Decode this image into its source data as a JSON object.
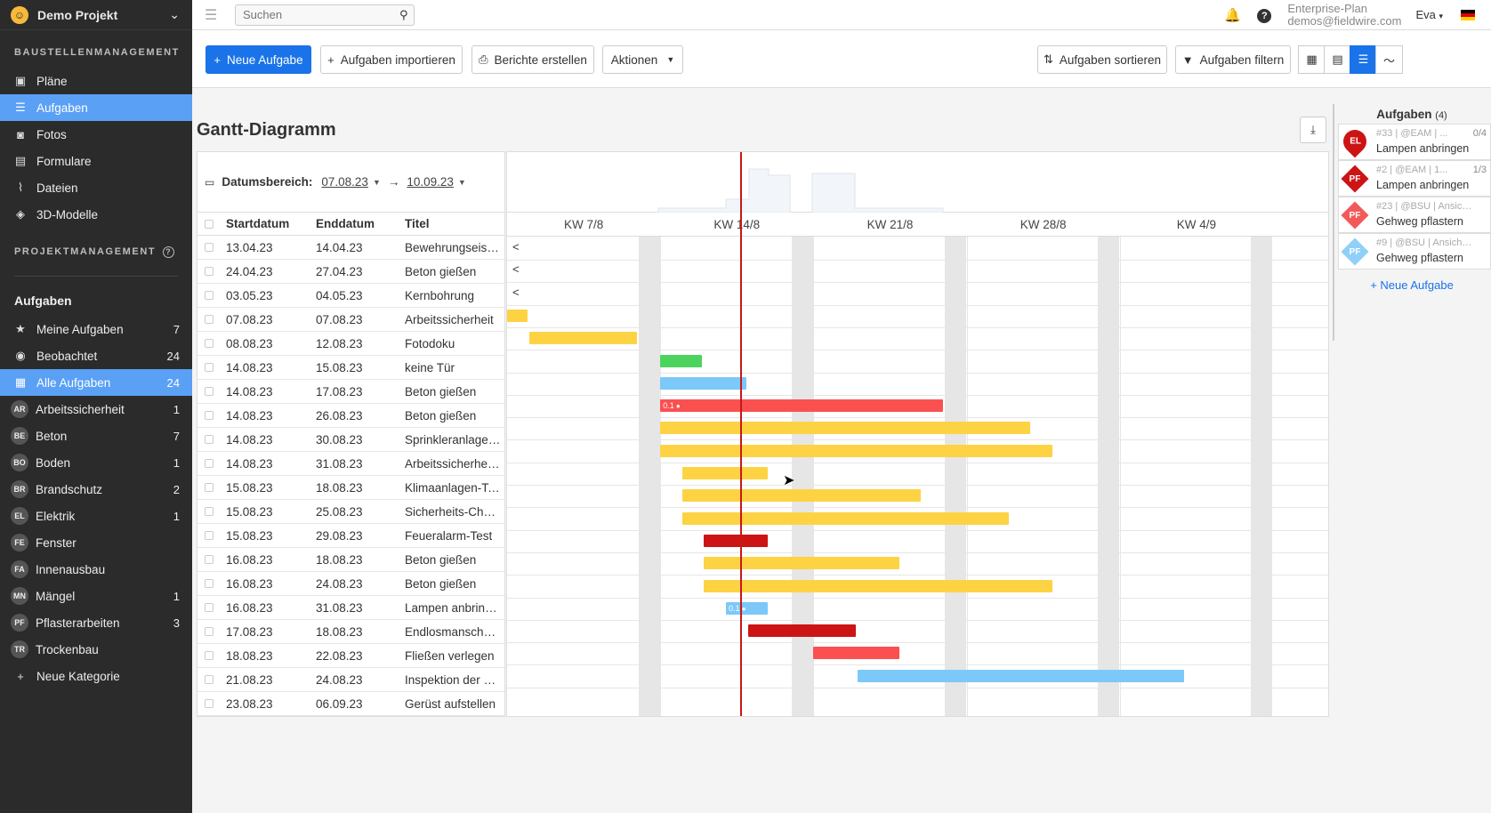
{
  "project": {
    "name": "Demo Projekt"
  },
  "sidebar": {
    "section1": "BAUSTELLENMANAGEMENT",
    "nav": [
      {
        "label": "Pläne",
        "icon": "plans-icon"
      },
      {
        "label": "Aufgaben",
        "icon": "list-icon",
        "active": true
      },
      {
        "label": "Fotos",
        "icon": "camera-icon"
      },
      {
        "label": "Formulare",
        "icon": "clipboard-icon"
      },
      {
        "label": "Dateien",
        "icon": "paperclip-icon"
      },
      {
        "label": "3D-Modelle",
        "icon": "cube-icon"
      }
    ],
    "section2": "PROJEKTMANAGEMENT",
    "tasks_heading": "Aufgaben",
    "task_filters": [
      {
        "label": "Meine Aufgaben",
        "icon": "star-icon",
        "count": "7"
      },
      {
        "label": "Beobachtet",
        "icon": "eye-icon",
        "count": "24"
      },
      {
        "label": "Alle Aufgaben",
        "icon": "grid-icon",
        "count": "24",
        "active": true
      }
    ],
    "categories": [
      {
        "abbr": "AR",
        "label": "Arbeitssicherheit",
        "count": "1"
      },
      {
        "abbr": "BE",
        "label": "Beton",
        "count": "7"
      },
      {
        "abbr": "BO",
        "label": "Boden",
        "count": "1"
      },
      {
        "abbr": "BR",
        "label": "Brandschutz",
        "count": "2"
      },
      {
        "abbr": "EL",
        "label": "Elektrik",
        "count": "1"
      },
      {
        "abbr": "FE",
        "label": "Fenster",
        "count": ""
      },
      {
        "abbr": "FA",
        "label": "Innenausbau",
        "count": ""
      },
      {
        "abbr": "MN",
        "label": "Mängel",
        "count": "1"
      },
      {
        "abbr": "PF",
        "label": "Pflasterarbeiten",
        "count": "3"
      },
      {
        "abbr": "TR",
        "label": "Trockenbau",
        "count": ""
      }
    ],
    "new_category": "Neue Kategorie"
  },
  "topbar": {
    "search_placeholder": "Suchen",
    "plan": "Enterprise-Plan",
    "email": "demos@fieldwire.com",
    "user": "Eva"
  },
  "toolbar": {
    "new_task": "Neue Aufgabe",
    "import": "Aufgaben importieren",
    "reports": "Berichte erstellen",
    "actions": "Aktionen",
    "sort": "Aufgaben sortieren",
    "filter": "Aufgaben filtern"
  },
  "gantt": {
    "title": "Gantt-Diagramm",
    "date_range_label": "Datumsbereich:",
    "date_from": "07.08.23",
    "date_to": "10.09.23",
    "columns": {
      "start": "Startdatum",
      "end": "Enddatum",
      "title": "Titel"
    },
    "weeks": [
      "KW 7/8",
      "KW 14/8",
      "KW 21/8",
      "KW 28/8",
      "KW 4/9"
    ],
    "rows": [
      {
        "start": "13.04.23",
        "end": "14.04.23",
        "title": "Bewehrungseisen...",
        "before": true
      },
      {
        "start": "24.04.23",
        "end": "27.04.23",
        "title": "Beton gießen",
        "before": true
      },
      {
        "start": "03.05.23",
        "end": "04.05.23",
        "title": "Kernbohrung",
        "before": true
      },
      {
        "start": "07.08.23",
        "end": "07.08.23",
        "title": "Arbeitssicherheit",
        "color": "#fdd344"
      },
      {
        "start": "08.08.23",
        "end": "12.08.23",
        "title": "Fotodoku",
        "color": "#fdd344"
      },
      {
        "start": "14.08.23",
        "end": "15.08.23",
        "title": "keine Tür",
        "color": "#4cd35e"
      },
      {
        "start": "14.08.23",
        "end": "17.08.23",
        "title": "Beton gießen",
        "color": "#7cc8f8"
      },
      {
        "start": "14.08.23",
        "end": "26.08.23",
        "title": "Beton gießen",
        "color": "#fb5050",
        "label": "0.1"
      },
      {
        "start": "14.08.23",
        "end": "30.08.23",
        "title": "Sprinkleranlagen-...",
        "color": "#fdd344"
      },
      {
        "start": "14.08.23",
        "end": "31.08.23",
        "title": "Arbeitssicherheit ...",
        "color": "#fdd344"
      },
      {
        "start": "15.08.23",
        "end": "18.08.23",
        "title": "Klimaanlagen-Tes...",
        "color": "#fdd344"
      },
      {
        "start": "15.08.23",
        "end": "25.08.23",
        "title": "Sicherheits-Chec...",
        "color": "#fdd344"
      },
      {
        "start": "15.08.23",
        "end": "29.08.23",
        "title": "Feueralarm-Test",
        "color": "#fdd344"
      },
      {
        "start": "16.08.23",
        "end": "18.08.23",
        "title": "Beton gießen",
        "color": "#cc1414"
      },
      {
        "start": "16.08.23",
        "end": "24.08.23",
        "title": "Beton gießen",
        "color": "#fdd344"
      },
      {
        "start": "16.08.23",
        "end": "31.08.23",
        "title": "Lampen anbringe...",
        "color": "#fdd344"
      },
      {
        "start": "17.08.23",
        "end": "18.08.23",
        "title": "Endlosmanschett...",
        "color": "#7cc8f8",
        "label": "0.1"
      },
      {
        "start": "18.08.23",
        "end": "22.08.23",
        "title": "Fließen verlegen",
        "color": "#cc1414"
      },
      {
        "start": "21.08.23",
        "end": "24.08.23",
        "title": "Inspektion der Be...",
        "color": "#fb5050"
      },
      {
        "start": "23.08.23",
        "end": "06.09.23",
        "title": "Gerüst aufstellen",
        "color": "#7cc8f8"
      }
    ]
  },
  "panel": {
    "title": "Aufgaben",
    "count": "(4)",
    "cards": [
      {
        "abbr": "EL",
        "meta": "#33 | @EAM | ...",
        "progress": "0/4",
        "name": "Lampen anbringen",
        "color": "#cc1414",
        "shape": "circle"
      },
      {
        "abbr": "PF",
        "meta": "#2 | @EAM | 1...",
        "progress": "1/3",
        "name": "Lampen anbringen",
        "color": "#cc1414",
        "shape": "diamond"
      },
      {
        "abbr": "PF",
        "meta": "#23 | @BSU | Ansicht_...",
        "progress": "",
        "name": "Gehweg pflastern",
        "color": "#f25a5a",
        "shape": "diamond"
      },
      {
        "abbr": "PF",
        "meta": "#9 | @BSU | Ansicht_NO",
        "progress": "",
        "name": "Gehweg pflastern",
        "color": "#8fd0f8",
        "shape": "diamond"
      }
    ],
    "new_task": "+ Neue Aufgabe"
  }
}
